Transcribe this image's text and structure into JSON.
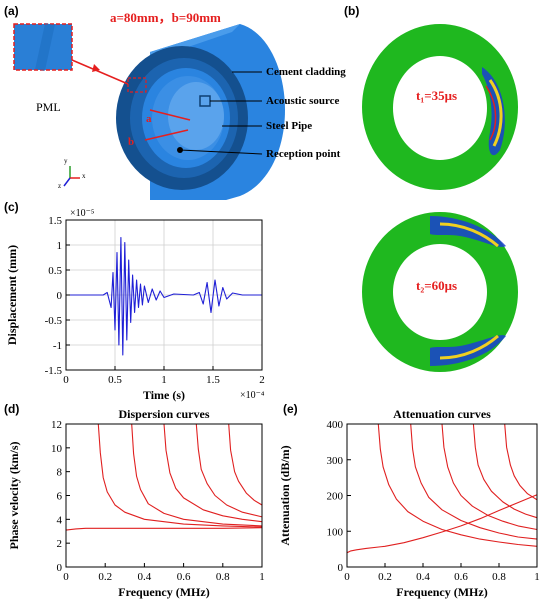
{
  "panel_labels": [
    "(a)",
    "(b)",
    "(c)",
    "(d)",
    "(e)"
  ],
  "panel_a": {
    "dims": "a=80mm，b=90mm",
    "pml": "PML",
    "labels": [
      "Cement cladding",
      "Acoustic source",
      "Steel Pipe",
      "Reception point"
    ],
    "radius_a": "a",
    "radius_b": "b",
    "axis_glyphs": [
      "y",
      "z",
      "x"
    ],
    "colors": {
      "blue": "#2a84e0",
      "dark_blue": "#0d3f73",
      "red": "#e51f1f"
    }
  },
  "panel_b": {
    "snapshots": [
      {
        "label": "t₁=35μs"
      },
      {
        "label": "t₂=60μs"
      }
    ],
    "colors": {
      "ring": "#1fb81f",
      "wave": "#1b3fd1",
      "wave_alt": "#f0d020",
      "wave_hot": "#e02020"
    }
  },
  "chart_data": [
    {
      "panel": "(c)",
      "type": "line",
      "title": "",
      "xlabel": "Time (s)",
      "ylabel": "Displacement (mm)",
      "xlim": [
        0,
        2
      ],
      "ylim": [
        -1.5,
        1.5
      ],
      "x_multiplier": "×10⁻⁴",
      "y_multiplier": "×10⁻⁵",
      "xticks": [
        "0",
        "0.5",
        "1",
        "1.5",
        "2"
      ],
      "yticks": [
        "1.5",
        "1",
        "0.5",
        "0",
        "-0.5",
        "-1",
        "-1.5"
      ],
      "grid": true,
      "color": "#1f1fd6",
      "series": [
        {
          "x": [
            0,
            0.38,
            0.42,
            0.46,
            0.48,
            0.5,
            0.52,
            0.54,
            0.56,
            0.58,
            0.6,
            0.62,
            0.64,
            0.66,
            0.68,
            0.7,
            0.72,
            0.74,
            0.76,
            0.78,
            0.8,
            0.84,
            0.88,
            0.92,
            0.96,
            1.0,
            1.1,
            1.3,
            1.36,
            1.4,
            1.44,
            1.48,
            1.52,
            1.56,
            1.6,
            1.64,
            1.7,
            1.8,
            2.0
          ],
          "y": [
            0,
            0,
            0.05,
            -0.25,
            0.45,
            -0.7,
            0.85,
            -1.0,
            1.15,
            -1.2,
            1.05,
            -0.9,
            0.7,
            -0.55,
            0.4,
            -0.35,
            0.3,
            -0.25,
            0.22,
            -0.2,
            0.18,
            -0.15,
            0.12,
            -0.1,
            0.08,
            -0.05,
            0.02,
            0,
            0.05,
            -0.18,
            0.25,
            -0.35,
            0.3,
            -0.22,
            0.15,
            -0.08,
            0.04,
            0,
            0
          ]
        }
      ]
    },
    {
      "panel": "(d)",
      "type": "line",
      "title": "Dispersion curves",
      "xlabel": "Frequency (MHz)",
      "ylabel": "Phase velocity (km/s)",
      "xlim": [
        0,
        1
      ],
      "ylim": [
        0,
        12
      ],
      "xticks": [
        "0",
        "0.2",
        "0.4",
        "0.6",
        "0.8",
        "1"
      ],
      "yticks": [
        "12",
        "10",
        "8",
        "6",
        "4",
        "2",
        "0"
      ],
      "color": "#e02020",
      "series": [
        {
          "x": [
            0,
            0.05,
            0.1,
            0.2,
            0.4,
            0.6,
            0.8,
            1.0
          ],
          "y": [
            3.1,
            3.2,
            3.25,
            3.25,
            3.25,
            3.25,
            3.25,
            3.3
          ]
        },
        {
          "x": [
            0.165,
            0.175,
            0.19,
            0.21,
            0.25,
            0.3,
            0.4,
            0.6,
            0.8,
            1.0
          ],
          "y": [
            12,
            9.6,
            7.5,
            6.3,
            5.2,
            4.6,
            4.0,
            3.6,
            3.45,
            3.35
          ]
        },
        {
          "x": [
            0.335,
            0.345,
            0.36,
            0.38,
            0.42,
            0.5,
            0.6,
            0.8,
            1.0
          ],
          "y": [
            12,
            9.5,
            7.6,
            6.5,
            5.3,
            4.5,
            4.0,
            3.6,
            3.45
          ]
        },
        {
          "x": [
            0.5,
            0.51,
            0.53,
            0.56,
            0.6,
            0.7,
            0.8,
            0.9,
            1.0
          ],
          "y": [
            12,
            9.8,
            7.9,
            6.6,
            5.8,
            4.8,
            4.3,
            4.0,
            3.8
          ]
        },
        {
          "x": [
            0.665,
            0.675,
            0.69,
            0.72,
            0.76,
            0.82,
            0.9,
            1.0
          ],
          "y": [
            12,
            9.9,
            8.2,
            7.0,
            6.0,
            5.2,
            4.6,
            4.2
          ]
        },
        {
          "x": [
            0.83,
            0.84,
            0.86,
            0.88,
            0.92,
            0.96,
            1.0
          ],
          "y": [
            12,
            9.8,
            8.0,
            7.2,
            6.2,
            5.6,
            5.2
          ]
        }
      ]
    },
    {
      "panel": "(e)",
      "type": "line",
      "title": "Attenuation  curves",
      "xlabel": "Frequency (MHz)",
      "ylabel": "Attenuation (dB/m)",
      "xlim": [
        0,
        1
      ],
      "ylim": [
        0,
        400
      ],
      "xticks": [
        "0",
        "0.2",
        "0.4",
        "0.6",
        "0.8",
        "1"
      ],
      "yticks": [
        "400",
        "300",
        "200",
        "100",
        "0"
      ],
      "color": "#e02020",
      "series": [
        {
          "x": [
            0,
            0.02,
            0.05,
            0.1,
            0.2,
            0.3,
            0.4,
            0.5,
            0.6,
            0.7,
            0.8,
            0.9,
            1.0
          ],
          "y": [
            40,
            45,
            48,
            52,
            58,
            68,
            82,
            98,
            115,
            135,
            158,
            180,
            202
          ]
        },
        {
          "x": [
            0.165,
            0.175,
            0.19,
            0.22,
            0.26,
            0.32,
            0.4,
            0.5,
            0.6,
            0.7,
            0.8,
            0.9,
            1.0
          ],
          "y": [
            400,
            330,
            280,
            230,
            190,
            155,
            128,
            105,
            90,
            78,
            70,
            63,
            58
          ]
        },
        {
          "x": [
            0.335,
            0.345,
            0.36,
            0.39,
            0.43,
            0.5,
            0.6,
            0.7,
            0.8,
            0.9,
            1.0
          ],
          "y": [
            400,
            330,
            280,
            235,
            195,
            160,
            130,
            110,
            95,
            84,
            78
          ]
        },
        {
          "x": [
            0.5,
            0.51,
            0.53,
            0.56,
            0.6,
            0.66,
            0.74,
            0.82,
            0.9,
            1.0
          ],
          "y": [
            400,
            335,
            280,
            235,
            200,
            170,
            145,
            128,
            115,
            105
          ]
        },
        {
          "x": [
            0.665,
            0.675,
            0.69,
            0.72,
            0.76,
            0.82,
            0.88,
            0.94,
            1.0
          ],
          "y": [
            400,
            335,
            285,
            245,
            212,
            182,
            162,
            148,
            138
          ]
        },
        {
          "x": [
            0.83,
            0.84,
            0.86,
            0.88,
            0.91,
            0.95,
            1.0
          ],
          "y": [
            400,
            335,
            285,
            255,
            228,
            205,
            188
          ]
        }
      ]
    }
  ]
}
